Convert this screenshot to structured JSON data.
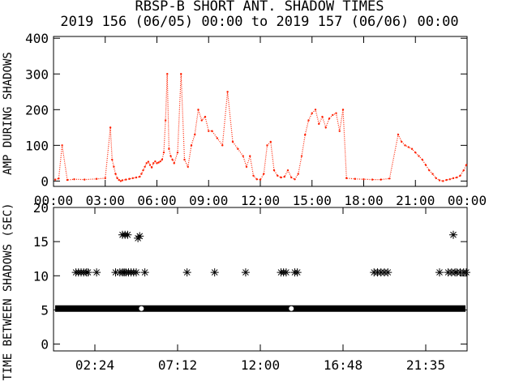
{
  "chart_data": [
    {
      "type": "scatter",
      "title": "RBSP-B SHORT ANT. SHADOW TIMES",
      "subtitle": "2019 156 (06/05) 00:00 to 2019 157 (06/06) 00:00",
      "xlabel": "",
      "ylabel": "AMP DURING SHADOWS",
      "xlim": [
        0,
        24
      ],
      "ylim": [
        -15,
        405
      ],
      "xticks": [
        "00:00",
        "03:00",
        "06:00",
        "09:00",
        "12:00",
        "15:00",
        "18:00",
        "21:00",
        "00:00"
      ],
      "yticks": [
        "0",
        "100",
        "200",
        "300",
        "400"
      ],
      "colors": {
        "points": "#ff2000",
        "axes": "#000000"
      },
      "series": [
        {
          "x": [
            0.1,
            0.3,
            0.5,
            0.8,
            1.2,
            1.8,
            2.5,
            3.0,
            3.3,
            3.4,
            3.5,
            3.6,
            3.7,
            3.8,
            3.9,
            4.0,
            4.2,
            4.4,
            4.6,
            4.8,
            5.0,
            5.1,
            5.2,
            5.3,
            5.4,
            5.5,
            5.6,
            5.7,
            5.8,
            5.9,
            6.0,
            6.1,
            6.2,
            6.3,
            6.4,
            6.5,
            6.6,
            6.7,
            6.8,
            6.9,
            7.0,
            7.2,
            7.4,
            7.6,
            7.8,
            8.0,
            8.2,
            8.4,
            8.6,
            8.8,
            9.0,
            9.2,
            9.5,
            9.8,
            10.1,
            10.4,
            10.7,
            11.0,
            11.2,
            11.4,
            11.6,
            11.8,
            12.0,
            12.2,
            12.4,
            12.6,
            12.8,
            13.0,
            13.2,
            13.4,
            13.6,
            13.8,
            14.0,
            14.2,
            14.4,
            14.6,
            14.8,
            15.0,
            15.2,
            15.4,
            15.6,
            15.8,
            16.0,
            16.2,
            16.4,
            16.6,
            16.8,
            17.0,
            17.5,
            18.0,
            18.5,
            19.0,
            19.5,
            20.0,
            20.2,
            20.4,
            20.6,
            20.8,
            21.0,
            21.2,
            21.4,
            21.6,
            21.8,
            22.0,
            22.2,
            22.4,
            22.6,
            22.8,
            23.0,
            23.2,
            23.4,
            23.6,
            23.8,
            23.95
          ],
          "y": [
            4,
            7,
            100,
            3,
            5,
            4,
            6,
            8,
            150,
            60,
            40,
            20,
            8,
            3,
            0,
            2,
            4,
            6,
            8,
            10,
            12,
            20,
            30,
            40,
            50,
            54,
            45,
            38,
            50,
            55,
            50,
            52,
            55,
            60,
            80,
            170,
            300,
            90,
            70,
            60,
            50,
            80,
            300,
            60,
            40,
            100,
            130,
            200,
            170,
            180,
            140,
            140,
            120,
            100,
            250,
            110,
            90,
            70,
            40,
            70,
            15,
            5,
            4,
            20,
            100,
            110,
            30,
            15,
            10,
            12,
            30,
            10,
            5,
            20,
            70,
            130,
            170,
            190,
            200,
            160,
            180,
            150,
            175,
            185,
            190,
            140,
            200,
            8,
            6,
            5,
            4,
            4,
            7,
            130,
            110,
            100,
            95,
            90,
            80,
            70,
            60,
            45,
            30,
            20,
            8,
            2,
            0,
            3,
            5,
            8,
            10,
            15,
            30,
            45
          ]
        }
      ]
    },
    {
      "type": "scatter",
      "title": "",
      "xlabel": "",
      "ylabel": "TIME BETWEEN SHADOWS (SEC)",
      "xlim": [
        0,
        24
      ],
      "ylim": [
        -1,
        20
      ],
      "xticks": [
        "02:24",
        "07:12",
        "12:00",
        "16:48",
        "21:35"
      ],
      "yticks": [
        "0",
        "5",
        "10",
        "15",
        "20"
      ],
      "colors": {
        "points": "#000000",
        "highlight": "#ffffff"
      },
      "series": [
        {
          "x": [
            1.3,
            1.45,
            1.6,
            1.75,
            1.9,
            2.0,
            2.5,
            3.6,
            3.85,
            4.0,
            4.1,
            4.2,
            4.35,
            4.5,
            4.65,
            4.8,
            5.3,
            7.75,
            9.35,
            11.15,
            13.2,
            13.35,
            13.5,
            14.0,
            14.15,
            18.6,
            18.8,
            19.0,
            19.2,
            19.4,
            22.4,
            22.9,
            23.1,
            23.3,
            23.4,
            23.6,
            23.8,
            23.95,
            4.0,
            4.15,
            4.3,
            4.9,
            5.0,
            23.2
          ],
          "y": [
            10.5,
            10.5,
            10.5,
            10.5,
            10.5,
            10.5,
            10.5,
            10.5,
            10.5,
            10.5,
            10.5,
            10.5,
            10.5,
            10.5,
            10.5,
            10.5,
            10.5,
            10.5,
            10.5,
            10.5,
            10.5,
            10.5,
            10.5,
            10.5,
            10.5,
            10.5,
            10.5,
            10.5,
            10.5,
            10.5,
            10.5,
            10.5,
            10.5,
            10.5,
            10.5,
            10.5,
            10.5,
            10.5,
            16,
            16,
            16,
            15.5,
            15.8,
            16
          ]
        },
        {
          "name": "",
          "x_range": [
            0,
            24
          ],
          "y": 5.2
        }
      ]
    }
  ]
}
